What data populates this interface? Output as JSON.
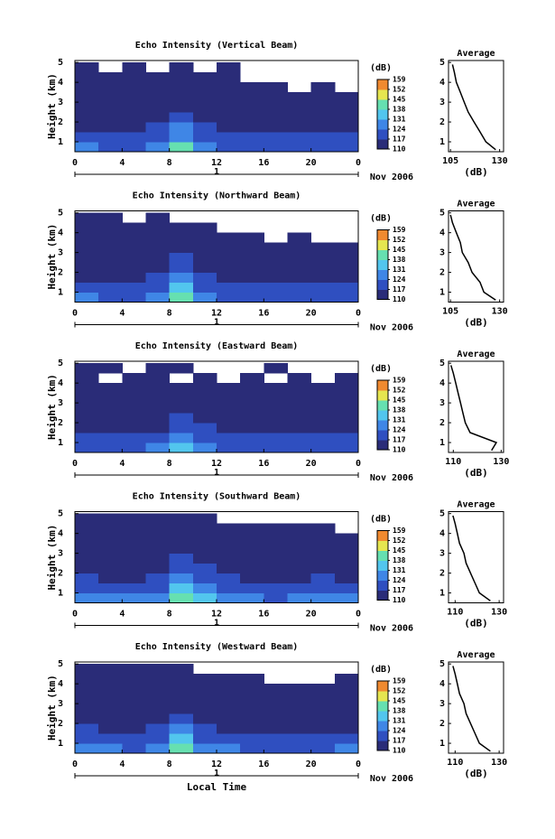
{
  "chart_data": [
    {
      "type": "heatmap",
      "title": "Echo Intensity (Vertical Beam)",
      "ylabel": "Height (km)",
      "date_label": "1",
      "date_note": "Nov 2006",
      "xlim": [
        0,
        24
      ],
      "xticks": [
        0,
        4,
        8,
        12,
        16,
        20,
        {
          "value": 24,
          "label": "0"
        }
      ],
      "ylim": [
        0.5,
        5.1
      ],
      "yticks": [
        1,
        2,
        3,
        4,
        5
      ],
      "x_edges": [
        0,
        2,
        4,
        6,
        8,
        10,
        12,
        14,
        16,
        18,
        20,
        22,
        24
      ],
      "y_edges": [
        0.5,
        1,
        1.5,
        2,
        2.5,
        3,
        3.5,
        4,
        4.5,
        5
      ],
      "z": [
        [
          124,
          122,
          121,
          124,
          138,
          128,
          122,
          121,
          120,
          121,
          121,
          122
        ],
        [
          119,
          118,
          117,
          120,
          130,
          122,
          118,
          117,
          117,
          118,
          118,
          118
        ],
        [
          116,
          115,
          115,
          117,
          124,
          118,
          116,
          115,
          115,
          115,
          116,
          115
        ],
        [
          114,
          113,
          113,
          115,
          120,
          116,
          114,
          113,
          113,
          113,
          113,
          113
        ],
        [
          112,
          112,
          112,
          113,
          116,
          114,
          112,
          112,
          112,
          112,
          112,
          111
        ],
        [
          111,
          111,
          111,
          112,
          113,
          112,
          111,
          111,
          111,
          111,
          111,
          110
        ],
        [
          111,
          111,
          111,
          111,
          112,
          111,
          111,
          110,
          110,
          null,
          110,
          null
        ],
        [
          111,
          110,
          111,
          111,
          111,
          110,
          110,
          null,
          null,
          null,
          null,
          null
        ],
        [
          110,
          null,
          110,
          null,
          110,
          null,
          110,
          null,
          null,
          null,
          null,
          null
        ]
      ],
      "colorbar": {
        "label": "(dB)",
        "ticks": [
          110,
          117,
          124,
          131,
          138,
          145,
          152,
          159
        ],
        "colors": [
          "#2a2c78",
          "#2f4fc0",
          "#3f86e6",
          "#52c6ee",
          "#66e0b0",
          "#e6e650",
          "#f08a30"
        ]
      }
    },
    {
      "type": "line",
      "title": "Average",
      "xlabel": "(dB)",
      "xlim": [
        104,
        132
      ],
      "xticks": [
        105,
        130
      ],
      "ylim": [
        0.5,
        5.1
      ],
      "yticks": [
        1,
        2,
        3,
        4,
        5
      ],
      "heights": [
        0.6,
        1.0,
        1.5,
        2.0,
        2.5,
        3.0,
        3.5,
        4.0,
        4.5,
        4.9
      ],
      "values": [
        128,
        123,
        120,
        117,
        114,
        112,
        110,
        108,
        107,
        106
      ]
    },
    {
      "type": "heatmap",
      "title": "Echo Intensity (Northward Beam)",
      "ylabel": "Height (km)",
      "date_label": "1",
      "date_note": "Nov 2006",
      "xlim": [
        0,
        24
      ],
      "xticks": [
        0,
        4,
        8,
        12,
        16,
        20,
        {
          "value": 24,
          "label": "0"
        }
      ],
      "ylim": [
        0.5,
        5.1
      ],
      "yticks": [
        1,
        2,
        3,
        4,
        5
      ],
      "x_edges": [
        0,
        2,
        4,
        6,
        8,
        10,
        12,
        14,
        16,
        18,
        20,
        22,
        24
      ],
      "y_edges": [
        0.5,
        1,
        1.5,
        2,
        2.5,
        3,
        3.5,
        4,
        4.5,
        5
      ],
      "z": [
        [
          125,
          123,
          122,
          125,
          140,
          129,
          123,
          122,
          121,
          122,
          122,
          123
        ],
        [
          120,
          118,
          118,
          121,
          131,
          123,
          119,
          118,
          117,
          118,
          118,
          119
        ],
        [
          116,
          116,
          115,
          117,
          125,
          119,
          116,
          115,
          115,
          116,
          116,
          115
        ],
        [
          114,
          114,
          113,
          115,
          121,
          116,
          114,
          113,
          113,
          113,
          114,
          113
        ],
        [
          112,
          112,
          112,
          113,
          117,
          114,
          112,
          112,
          112,
          112,
          112,
          112
        ],
        [
          111,
          111,
          111,
          112,
          113,
          112,
          111,
          111,
          111,
          111,
          110,
          110
        ],
        [
          111,
          111,
          111,
          111,
          112,
          111,
          110,
          110,
          null,
          110,
          null,
          null
        ],
        [
          111,
          111,
          110,
          111,
          111,
          110,
          null,
          null,
          null,
          null,
          null,
          null
        ],
        [
          110,
          110,
          null,
          110,
          null,
          null,
          null,
          null,
          null,
          null,
          null,
          null
        ]
      ],
      "colorbar": {
        "label": "(dB)",
        "ticks": [
          110,
          117,
          124,
          131,
          138,
          145,
          152,
          159
        ],
        "colors": [
          "#2a2c78",
          "#2f4fc0",
          "#3f86e6",
          "#52c6ee",
          "#66e0b0",
          "#e6e650",
          "#f08a30"
        ]
      }
    },
    {
      "type": "line",
      "title": "Average",
      "xlabel": "(dB)",
      "xlim": [
        104,
        132
      ],
      "xticks": [
        105,
        130
      ],
      "ylim": [
        0.5,
        5.1
      ],
      "yticks": [
        1,
        2,
        3,
        4,
        5
      ],
      "heights": [
        0.6,
        1.0,
        1.5,
        2.0,
        2.5,
        3.0,
        3.5,
        4.0,
        4.5,
        4.9
      ],
      "values": [
        128,
        122,
        120,
        116,
        114,
        111,
        110,
        108,
        106,
        105
      ]
    },
    {
      "type": "heatmap",
      "title": "Echo Intensity (Eastward Beam)",
      "ylabel": "Height (km)",
      "date_label": "1",
      "date_note": "Nov 2006",
      "xlim": [
        0,
        24
      ],
      "xticks": [
        0,
        4,
        8,
        12,
        16,
        20,
        {
          "value": 24,
          "label": "0"
        }
      ],
      "ylim": [
        0.5,
        5.1
      ],
      "yticks": [
        1,
        2,
        3,
        4,
        5
      ],
      "x_edges": [
        0,
        2,
        4,
        6,
        8,
        10,
        12,
        14,
        16,
        18,
        20,
        22,
        24
      ],
      "y_edges": [
        0.5,
        1,
        1.5,
        2,
        2.5,
        3,
        3.5,
        4,
        4.5,
        5
      ],
      "z": [
        [
          123,
          122,
          121,
          124,
          136,
          127,
          122,
          121,
          120,
          121,
          121,
          122
        ],
        [
          121,
          120,
          119,
          121,
          129,
          123,
          120,
          119,
          119,
          120,
          120,
          120
        ],
        [
          115,
          114,
          114,
          116,
          122,
          117,
          115,
          114,
          114,
          114,
          115,
          114
        ],
        [
          113,
          113,
          112,
          114,
          118,
          115,
          113,
          112,
          112,
          113,
          113,
          112
        ],
        [
          112,
          112,
          111,
          112,
          115,
          113,
          112,
          111,
          111,
          112,
          112,
          111
        ],
        [
          111,
          111,
          111,
          111,
          112,
          111,
          111,
          111,
          110,
          111,
          110,
          110
        ],
        [
          111,
          110,
          111,
          111,
          111,
          111,
          110,
          110,
          110,
          110,
          110,
          110
        ],
        [
          110,
          null,
          110,
          110,
          null,
          110,
          null,
          110,
          null,
          110,
          null,
          110
        ],
        [
          110,
          110,
          null,
          110,
          110,
          null,
          null,
          null,
          110,
          null,
          null,
          null
        ]
      ],
      "colorbar": {
        "label": "(dB)",
        "ticks": [
          110,
          117,
          124,
          131,
          138,
          145,
          152,
          159
        ],
        "colors": [
          "#2a2c78",
          "#2f4fc0",
          "#3f86e6",
          "#52c6ee",
          "#66e0b0",
          "#e6e650",
          "#f08a30"
        ]
      }
    },
    {
      "type": "line",
      "title": "Average",
      "xlabel": "(dB)",
      "xlim": [
        108,
        131
      ],
      "xticks": [
        110,
        130
      ],
      "ylim": [
        0.5,
        5.1
      ],
      "yticks": [
        1,
        2,
        3,
        4,
        5
      ],
      "heights": [
        0.6,
        1.0,
        1.5,
        2.0,
        2.5,
        3.0,
        3.5,
        4.0,
        4.5,
        4.9
      ],
      "values": [
        126,
        128,
        117,
        115,
        114,
        113,
        112,
        111,
        110,
        109
      ]
    },
    {
      "type": "heatmap",
      "title": "Echo Intensity (Southward Beam)",
      "ylabel": "Height (km)",
      "date_label": "1",
      "date_note": "Nov 2006",
      "xlim": [
        0,
        24
      ],
      "xticks": [
        0,
        4,
        8,
        12,
        16,
        20,
        {
          "value": 24,
          "label": "0"
        }
      ],
      "ylim": [
        0.5,
        5.1
      ],
      "yticks": [
        1,
        2,
        3,
        4,
        5
      ],
      "x_edges": [
        0,
        2,
        4,
        6,
        8,
        10,
        12,
        14,
        16,
        18,
        20,
        22,
        24
      ],
      "y_edges": [
        0.5,
        1,
        1.5,
        2,
        2.5,
        3,
        3.5,
        4,
        4.5,
        5
      ],
      "z": [
        [
          127,
          125,
          124,
          127,
          141,
          131,
          125,
          124,
          123,
          124,
          124,
          125
        ],
        [
          121,
          120,
          119,
          122,
          132,
          124,
          120,
          119,
          119,
          120,
          120,
          120
        ],
        [
          117,
          116,
          116,
          118,
          126,
          119,
          117,
          116,
          116,
          116,
          117,
          116
        ],
        [
          115,
          114,
          114,
          116,
          121,
          117,
          115,
          114,
          114,
          114,
          114,
          114
        ],
        [
          113,
          113,
          113,
          114,
          117,
          115,
          113,
          113,
          113,
          113,
          113,
          112
        ],
        [
          112,
          112,
          112,
          112,
          114,
          113,
          112,
          112,
          111,
          112,
          111,
          111
        ],
        [
          112,
          111,
          112,
          112,
          113,
          111,
          111,
          111,
          111,
          111,
          111,
          110
        ],
        [
          111,
          111,
          111,
          111,
          112,
          111,
          110,
          111,
          111,
          110,
          110,
          null
        ],
        [
          111,
          110,
          111,
          110,
          110,
          110,
          null,
          null,
          null,
          null,
          null,
          null
        ]
      ],
      "colorbar": {
        "label": "(dB)",
        "ticks": [
          110,
          117,
          124,
          131,
          138,
          145,
          152,
          159
        ],
        "colors": [
          "#2a2c78",
          "#2f4fc0",
          "#3f86e6",
          "#52c6ee",
          "#66e0b0",
          "#e6e650",
          "#f08a30"
        ]
      }
    },
    {
      "type": "line",
      "title": "Average",
      "xlabel": "(dB)",
      "xlim": [
        107,
        132
      ],
      "xticks": [
        110,
        130
      ],
      "ylim": [
        0.5,
        5.1
      ],
      "yticks": [
        1,
        2,
        3,
        4,
        5
      ],
      "heights": [
        0.6,
        1.0,
        1.5,
        2.0,
        2.5,
        3.0,
        3.5,
        4.0,
        4.5,
        4.9
      ],
      "values": [
        126,
        121,
        119,
        117,
        115,
        114,
        112,
        111,
        110,
        109
      ]
    },
    {
      "type": "heatmap",
      "title": "Echo Intensity (Westward Beam)",
      "ylabel": "Height (km)",
      "xlabel": "Local Time",
      "date_label": "1",
      "date_note": "Nov 2006",
      "xlim": [
        0,
        24
      ],
      "xticks": [
        0,
        4,
        8,
        12,
        16,
        20,
        {
          "value": 24,
          "label": "0"
        }
      ],
      "ylim": [
        0.5,
        5.1
      ],
      "yticks": [
        1,
        2,
        3,
        4,
        5
      ],
      "x_edges": [
        0,
        2,
        4,
        6,
        8,
        10,
        12,
        14,
        16,
        18,
        20,
        22,
        24
      ],
      "y_edges": [
        0.5,
        1,
        1.5,
        2,
        2.5,
        3,
        3.5,
        4,
        4.5,
        5
      ],
      "z": [
        [
          126,
          124,
          123,
          126,
          142,
          130,
          124,
          123,
          122,
          123,
          123,
          124
        ],
        [
          121,
          119,
          119,
          121,
          131,
          123,
          120,
          119,
          118,
          119,
          119,
          120
        ],
        [
          117,
          116,
          116,
          118,
          125,
          119,
          116,
          116,
          115,
          116,
          116,
          116
        ],
        [
          115,
          114,
          114,
          115,
          120,
          116,
          114,
          114,
          113,
          114,
          114,
          113
        ],
        [
          113,
          113,
          113,
          113,
          116,
          114,
          113,
          112,
          112,
          112,
          112,
          112
        ],
        [
          112,
          112,
          112,
          112,
          113,
          112,
          111,
          111,
          111,
          111,
          111,
          111
        ],
        [
          112,
          111,
          111,
          111,
          112,
          111,
          111,
          111,
          110,
          110,
          110,
          110
        ],
        [
          111,
          111,
          111,
          111,
          111,
          110,
          110,
          110,
          null,
          null,
          null,
          110
        ],
        [
          111,
          111,
          110,
          110,
          110,
          null,
          null,
          null,
          null,
          null,
          null,
          null
        ]
      ],
      "colorbar": {
        "label": "(dB)",
        "ticks": [
          110,
          117,
          124,
          131,
          138,
          145,
          152,
          159
        ],
        "colors": [
          "#2a2c78",
          "#2f4fc0",
          "#3f86e6",
          "#52c6ee",
          "#66e0b0",
          "#e6e650",
          "#f08a30"
        ]
      }
    },
    {
      "type": "line",
      "title": "Average",
      "xlabel": "(dB)",
      "xlim": [
        107,
        132
      ],
      "xticks": [
        110,
        130
      ],
      "ylim": [
        0.5,
        5.1
      ],
      "yticks": [
        1,
        2,
        3,
        4,
        5
      ],
      "heights": [
        0.6,
        1.0,
        1.5,
        2.0,
        2.5,
        3.0,
        3.5,
        4.0,
        4.5,
        4.9
      ],
      "values": [
        126,
        121,
        119,
        117,
        115,
        114,
        112,
        111,
        110,
        109
      ]
    }
  ]
}
